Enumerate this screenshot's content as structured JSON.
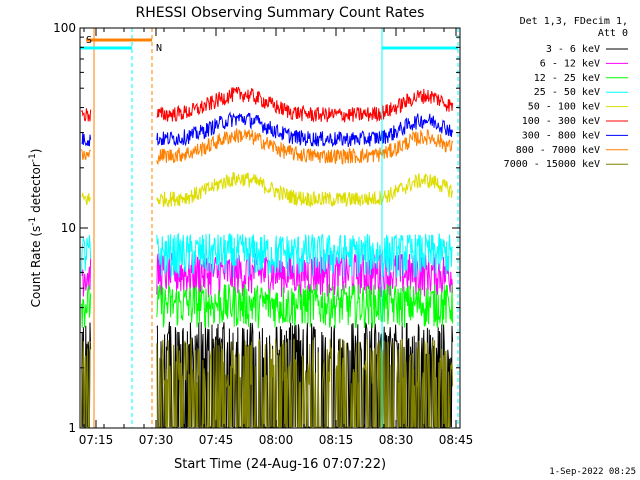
{
  "chart_data": {
    "type": "line",
    "title": "RHESSI Observing Summary Count Rates",
    "xlabel": "Start Time (24-Aug-16 07:07:22)",
    "ylabel": "Count Rate (s",
    "ylabel_sup": "-1",
    "ylabel_mid": " detector",
    "ylabel_sup2": "-1",
    "ylabel_end": ")",
    "y_scale": "log",
    "ylim": [
      1,
      100
    ],
    "y_ticks": [
      {
        "value": 1,
        "label": "1"
      },
      {
        "value": 10,
        "label": "10"
      },
      {
        "value": 100,
        "label": "100"
      }
    ],
    "xlim_minutes": [
      7.1833,
      8.7667
    ],
    "x_ticks": [
      {
        "value": 7.25,
        "label": "07:15"
      },
      {
        "value": 7.5,
        "label": "07:30"
      },
      {
        "value": 7.75,
        "label": "07:45"
      },
      {
        "value": 8.0,
        "label": "08:00"
      },
      {
        "value": 8.25,
        "label": "08:15"
      },
      {
        "value": 8.5,
        "label": "08:30"
      },
      {
        "value": 8.75,
        "label": "08:45"
      }
    ],
    "legend_header": [
      "Det 1,3, FDecim 1,",
      "Att 0"
    ],
    "legend_position": "right",
    "series": [
      {
        "name": "3 - 6 keV",
        "color": "#000000",
        "level": 2.2
      },
      {
        "name": "6 - 12 keV",
        "color": "#ff00ff",
        "level": 6.0
      },
      {
        "name": "12 - 25 keV",
        "color": "#00ff00",
        "level": 4.2
      },
      {
        "name": "25 - 50 keV",
        "color": "#00ffff",
        "level": 7.5
      },
      {
        "name": "50 - 100 keV",
        "color": "#dddd00",
        "level": 17
      },
      {
        "name": "100 - 300 keV",
        "color": "#ff0000",
        "level": 45
      },
      {
        "name": "300 - 800 keV",
        "color": "#0000ff",
        "level": 34
      },
      {
        "name": "800 - 7000 keV",
        "color": "#ff8000",
        "level": 28
      },
      {
        "name": "7000 - 15000 keV",
        "color": "#808000",
        "level": 1.6
      }
    ],
    "annotations": [
      {
        "text": "S",
        "color": "#ff8000"
      },
      {
        "text": "N",
        "color": "#00ffff"
      }
    ],
    "flags": {
      "saa_start": 7.2417,
      "saa_end": 7.4833,
      "night1_start": 7.1833,
      "night1_end": 7.4,
      "night2_start": 8.4417,
      "night2_end": 8.7667
    }
  },
  "footer": {
    "date": "1-Sep-2022 08:25"
  }
}
